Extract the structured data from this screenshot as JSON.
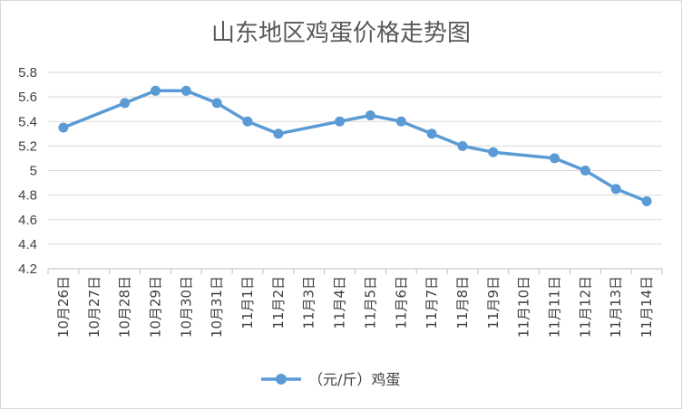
{
  "chart_data": {
    "type": "line",
    "title": "山东地区鸡蛋价格走势图",
    "categories": [
      "10月26日",
      "10月27日",
      "10月28日",
      "10月29日",
      "10月30日",
      "10月31日",
      "11月1日",
      "11月2日",
      "11月3日",
      "11月4日",
      "11月5日",
      "11月6日",
      "11月7日",
      "11月8日",
      "11月9日",
      "11月10日",
      "11月11日",
      "11月12日",
      "11月13日",
      "11月14日"
    ],
    "series": [
      {
        "name": "（元/斤）鸡蛋",
        "values": [
          5.35,
          null,
          5.55,
          5.65,
          5.65,
          5.55,
          5.4,
          5.3,
          null,
          5.4,
          5.45,
          5.4,
          5.3,
          5.2,
          5.15,
          null,
          5.1,
          5.0,
          4.85,
          4.75
        ],
        "color": "#5b9bd5"
      }
    ],
    "yticks": [
      "4.2",
      "4.4",
      "4.6",
      "4.8",
      "5",
      "5.2",
      "5.4",
      "5.6",
      "5.8"
    ],
    "ylim": [
      4.2,
      5.8
    ],
    "grid": true,
    "legend_position": "bottom"
  }
}
